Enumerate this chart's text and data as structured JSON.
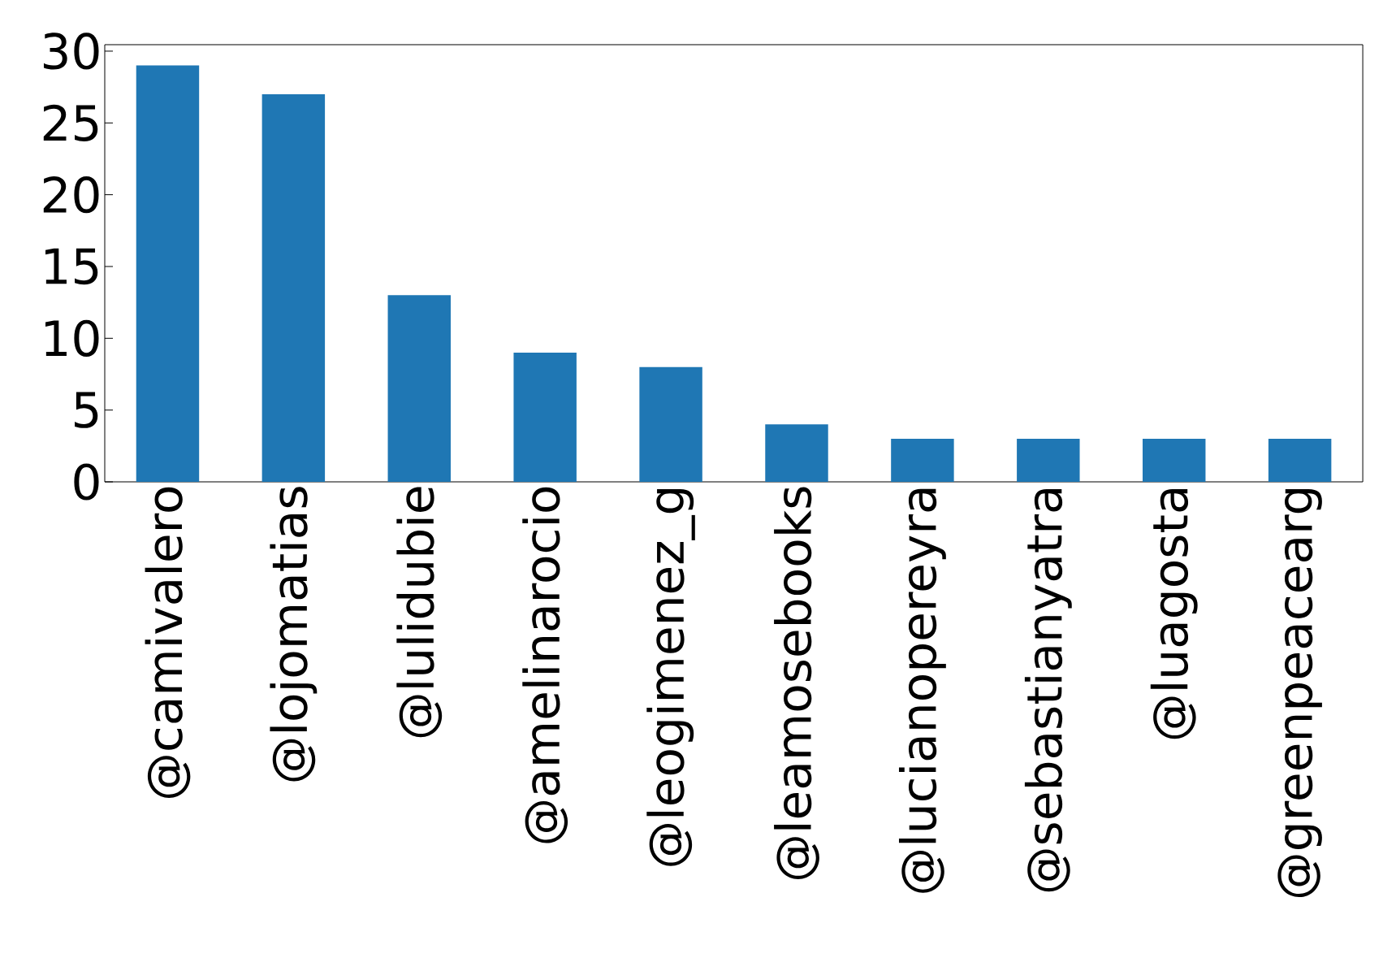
{
  "chart_data": {
    "type": "bar",
    "categories": [
      "@camivalero",
      "@lojomatias",
      "@lulidubie",
      "@amelinarocio",
      "@leogimenez_g",
      "@leamosebooks",
      "@lucianopereyra",
      "@sebastianyatra",
      "@luagosta",
      "@greenpeacearg"
    ],
    "values": [
      29,
      27,
      13,
      9,
      8,
      4,
      3,
      3,
      3,
      3
    ],
    "color": "#1f77b4",
    "ylim": [
      0,
      30.45
    ],
    "yticks": [
      0,
      5,
      10,
      15,
      20,
      25,
      30
    ]
  }
}
